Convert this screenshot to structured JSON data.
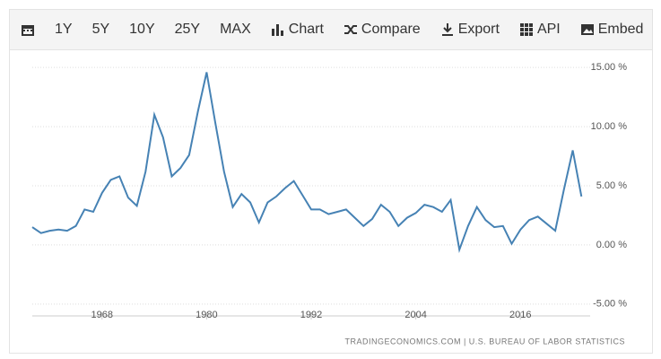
{
  "toolbar": {
    "buttons": [
      "1Y",
      "5Y",
      "10Y",
      "25Y",
      "MAX",
      "Chart",
      "Compare",
      "Export",
      "API",
      "Embed"
    ]
  },
  "chart_data": {
    "type": "line",
    "source": "TRADINGECONOMICS.COM  |  U.S. BUREAU OF LABOR STATISTICS",
    "x": [
      1960,
      1961,
      1962,
      1963,
      1964,
      1965,
      1966,
      1967,
      1968,
      1969,
      1970,
      1971,
      1972,
      1973,
      1974,
      1975,
      1976,
      1977,
      1978,
      1979,
      1980,
      1981,
      1982,
      1983,
      1984,
      1985,
      1986,
      1987,
      1988,
      1989,
      1990,
      1991,
      1992,
      1993,
      1994,
      1995,
      1996,
      1997,
      1998,
      1999,
      2000,
      2001,
      2002,
      2003,
      2004,
      2005,
      2006,
      2007,
      2008,
      2009,
      2010,
      2011,
      2012,
      2013,
      2014,
      2015,
      2016,
      2017,
      2018,
      2019,
      2020,
      2021,
      2022,
      2023
    ],
    "series": [
      {
        "color": "#4682b4",
        "values": [
          1.5,
          1.0,
          1.2,
          1.3,
          1.2,
          1.6,
          3.0,
          2.8,
          4.4,
          5.5,
          5.8,
          4.0,
          3.3,
          6.2,
          11.0,
          9.1,
          5.8,
          6.5,
          7.6,
          11.3,
          14.6,
          10.3,
          6.2,
          3.2,
          4.3,
          3.6,
          1.9,
          3.6,
          4.1,
          4.8,
          5.4,
          4.2,
          3.0,
          3.0,
          2.6,
          2.8,
          3.0,
          2.3,
          1.6,
          2.2,
          3.4,
          2.8,
          1.6,
          2.3,
          2.7,
          3.4,
          3.2,
          2.8,
          3.8,
          -0.4,
          1.6,
          3.2,
          2.1,
          1.5,
          1.6,
          0.1,
          1.3,
          2.1,
          2.4,
          1.8,
          1.2,
          4.7,
          8.0,
          4.1
        ]
      }
    ],
    "xlim": [
      1960,
      2024
    ],
    "xticks": [
      1968,
      1980,
      1992,
      2004,
      2016
    ],
    "ylim": [
      -6,
      16
    ],
    "yticks": [
      {
        "value": 15,
        "label": "15.00 %"
      },
      {
        "value": 10,
        "label": "10.00 %"
      },
      {
        "value": 5,
        "label": "5.00 %"
      },
      {
        "value": 0,
        "label": "0.00 %"
      },
      {
        "value": -5,
        "label": "-5.00 %"
      }
    ],
    "grid": true
  }
}
